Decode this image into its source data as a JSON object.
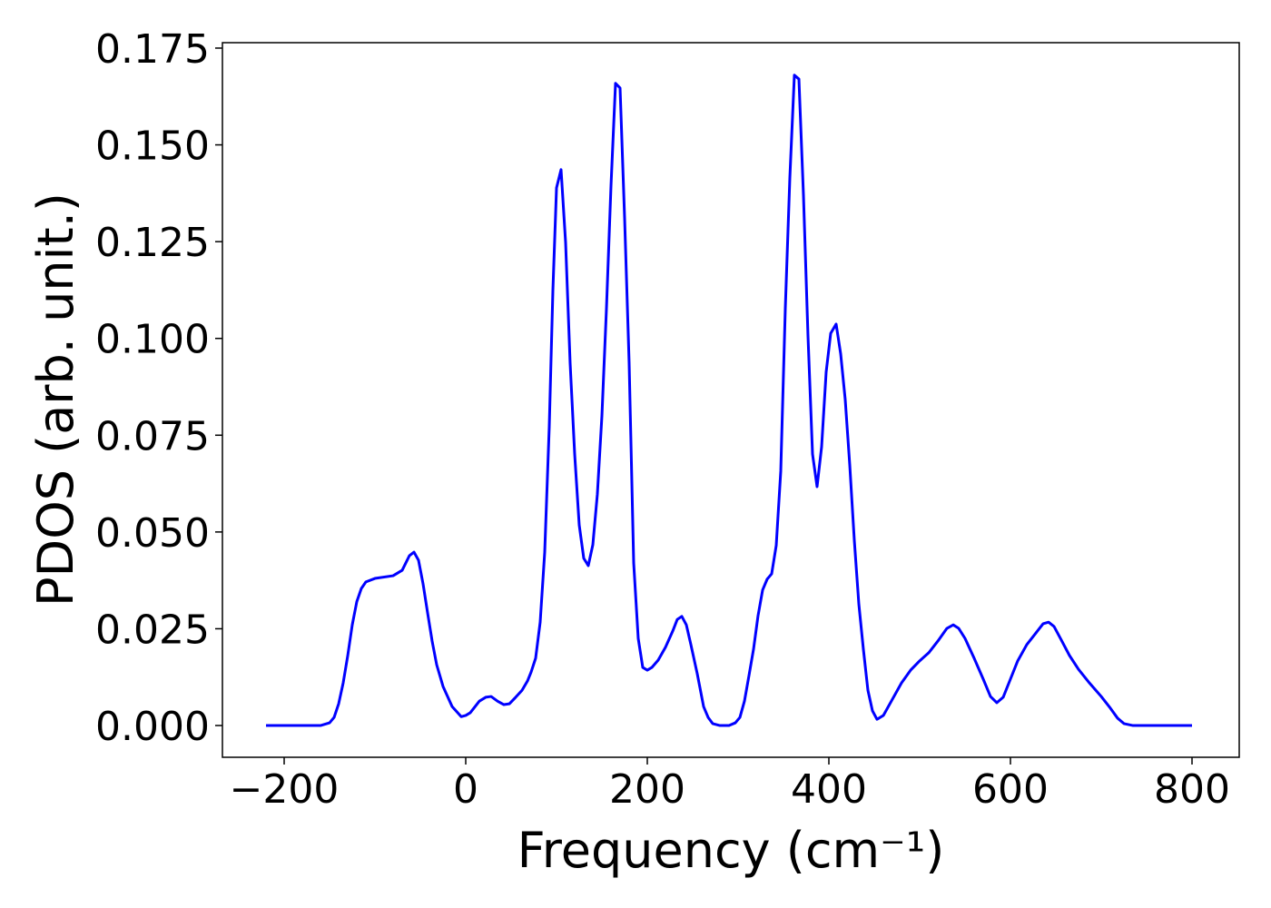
{
  "chart_data": {
    "type": "line",
    "xlabel": "Frequency (cm⁻¹)",
    "ylabel": "PDOS (arb. unit.)",
    "xlim": [
      -268,
      852
    ],
    "ylim": [
      -0.0082,
      0.1764
    ],
    "xticks": [
      {
        "value": -200,
        "label": "−200"
      },
      0,
      200,
      400,
      600,
      800
    ],
    "yticks": [
      {
        "value": 0,
        "label": "0.000"
      },
      {
        "value": 0.025,
        "label": "0.025"
      },
      {
        "value": 0.05,
        "label": "0.050"
      },
      {
        "value": 0.075,
        "label": "0.075"
      },
      {
        "value": 0.1,
        "label": "0.100"
      },
      {
        "value": 0.125,
        "label": "0.125"
      },
      {
        "value": 0.15,
        "label": "0.150"
      },
      {
        "value": 0.175,
        "label": "0.175"
      }
    ],
    "color": "#0000ff",
    "x": [
      -220,
      -160,
      -150,
      -145,
      -140,
      -135,
      -130,
      -125,
      -120,
      -115,
      -110,
      -100,
      -80,
      -70,
      -62,
      -57,
      -52,
      -47,
      -42,
      -37,
      -32,
      -25,
      -15,
      -5,
      0,
      5,
      15,
      22,
      28,
      35,
      42,
      48,
      55,
      62,
      68,
      72,
      77,
      82,
      87,
      92,
      96,
      100,
      105,
      110,
      115,
      120,
      125,
      130,
      135,
      140,
      145,
      150,
      155,
      160,
      165,
      170,
      175,
      180,
      185,
      190,
      195,
      200,
      205,
      212,
      220,
      228,
      233,
      238,
      243,
      248,
      255,
      262,
      267,
      272,
      280,
      290,
      297,
      302,
      307,
      312,
      317,
      322,
      327,
      332,
      337,
      342,
      347,
      352,
      357,
      362,
      367,
      372,
      377,
      382,
      387,
      392,
      397,
      402,
      408,
      413,
      418,
      423,
      428,
      433,
      438,
      443,
      448,
      453,
      460,
      470,
      480,
      490,
      500,
      510,
      520,
      530,
      537,
      543,
      550,
      560,
      570,
      578,
      585,
      592,
      600,
      608,
      618,
      628,
      636,
      642,
      648,
      656,
      665,
      675,
      687,
      700,
      710,
      718,
      725,
      735,
      800
    ],
    "values": [
      0,
      0,
      0.0007,
      0.0021,
      0.0056,
      0.011,
      0.018,
      0.026,
      0.032,
      0.0354,
      0.0371,
      0.038,
      0.0387,
      0.0401,
      0.0439,
      0.0448,
      0.0427,
      0.0366,
      0.0291,
      0.0218,
      0.0157,
      0.0101,
      0.0049,
      0.0023,
      0.0026,
      0.0033,
      0.0063,
      0.0073,
      0.0075,
      0.0063,
      0.0054,
      0.0056,
      0.0073,
      0.0091,
      0.0115,
      0.0138,
      0.0174,
      0.0267,
      0.0448,
      0.0772,
      0.1124,
      0.1389,
      0.1436,
      0.1248,
      0.0936,
      0.0701,
      0.0518,
      0.0432,
      0.0413,
      0.0467,
      0.0598,
      0.08,
      0.1077,
      0.1394,
      0.1659,
      0.1647,
      0.1311,
      0.0936,
      0.042,
      0.0225,
      0.015,
      0.0143,
      0.015,
      0.0169,
      0.0202,
      0.0244,
      0.0274,
      0.0282,
      0.026,
      0.0209,
      0.0134,
      0.0049,
      0.0021,
      0.0005,
      0,
      0,
      0.0007,
      0.0021,
      0.0063,
      0.0129,
      0.0197,
      0.0284,
      0.035,
      0.0378,
      0.0392,
      0.0465,
      0.0657,
      0.1077,
      0.1415,
      0.168,
      0.167,
      0.137,
      0.1006,
      0.0701,
      0.0617,
      0.072,
      0.0913,
      0.1013,
      0.1037,
      0.096,
      0.0842,
      0.0673,
      0.0479,
      0.0314,
      0.0197,
      0.0091,
      0.0038,
      0.0016,
      0.0026,
      0.0068,
      0.011,
      0.0143,
      0.0167,
      0.0188,
      0.0218,
      0.0251,
      0.026,
      0.0251,
      0.0225,
      0.0174,
      0.012,
      0.0075,
      0.0059,
      0.0073,
      0.012,
      0.0167,
      0.0209,
      0.0239,
      0.0263,
      0.0267,
      0.0256,
      0.0221,
      0.0181,
      0.0145,
      0.011,
      0.0075,
      0.0045,
      0.0019,
      0.0005,
      0,
      0
    ]
  }
}
